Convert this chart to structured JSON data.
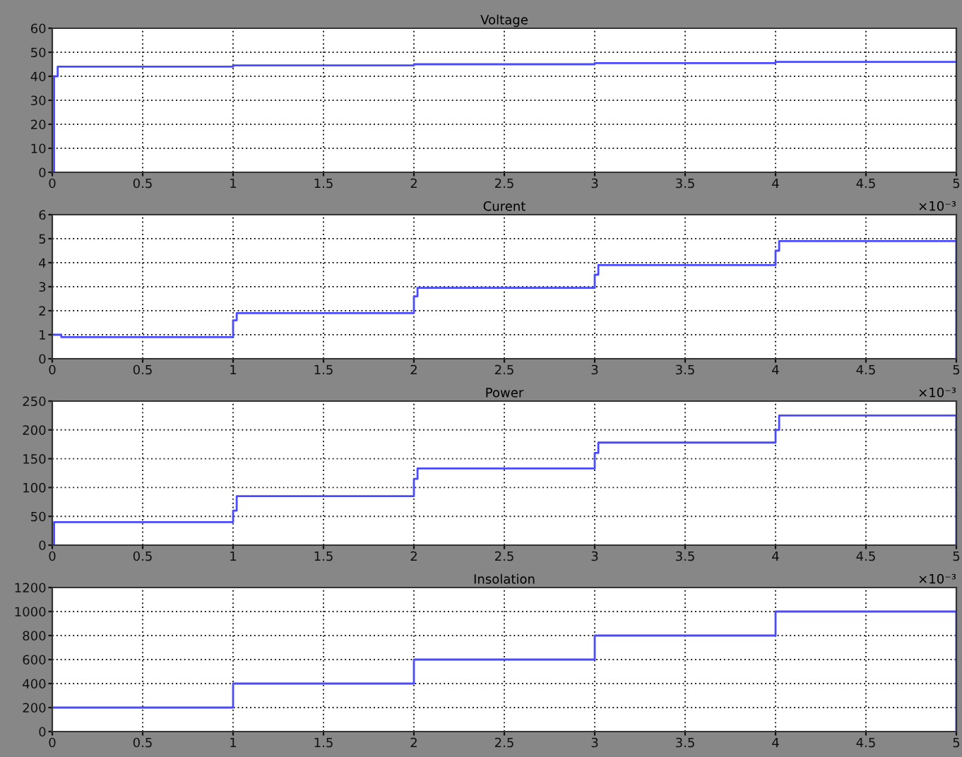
{
  "chart_data": [
    {
      "type": "step",
      "title": "Voltage",
      "x": [
        0,
        0.01,
        0.03,
        1,
        2,
        3,
        4,
        5
      ],
      "series": [
        {
          "color": "#4a4aff",
          "values": [
            0,
            40,
            44,
            44.5,
            45,
            45.5,
            46,
            46
          ]
        }
      ],
      "xlim": [
        0,
        5
      ],
      "xticks": [
        0,
        0.5,
        1,
        1.5,
        2,
        2.5,
        3,
        3.5,
        4,
        4.5,
        5
      ],
      "ylim": [
        0,
        60
      ],
      "yticks": [
        0,
        10,
        20,
        30,
        40,
        50,
        60
      ],
      "grid": true,
      "legend": false
    },
    {
      "type": "step",
      "title": "Curent",
      "x": [
        0,
        0.05,
        1,
        1.02,
        2,
        2.02,
        3,
        3.02,
        4,
        4.02,
        5
      ],
      "series": [
        {
          "color": "#4a4aff",
          "values": [
            1,
            0.9,
            1.6,
            1.9,
            2.6,
            2.95,
            3.5,
            3.9,
            4.5,
            4.9,
            0
          ]
        }
      ],
      "xlim": [
        0,
        5
      ],
      "xticks": [
        0,
        0.5,
        1,
        1.5,
        2,
        2.5,
        3,
        3.5,
        4,
        4.5,
        5
      ],
      "ylim": [
        0,
        6
      ],
      "yticks": [
        0,
        1,
        2,
        3,
        4,
        5,
        6
      ],
      "grid": true,
      "legend": false,
      "annotations": [
        "×10⁻³"
      ]
    },
    {
      "type": "step",
      "title": "Power",
      "x": [
        0,
        0.01,
        1,
        1.02,
        2,
        2.02,
        3,
        3.02,
        4,
        4.02,
        5
      ],
      "series": [
        {
          "color": "#4a4aff",
          "values": [
            0,
            40,
            60,
            85,
            115,
            133,
            160,
            178,
            200,
            225,
            0
          ]
        }
      ],
      "xlim": [
        0,
        5
      ],
      "xticks": [
        0,
        0.5,
        1,
        1.5,
        2,
        2.5,
        3,
        3.5,
        4,
        4.5,
        5
      ],
      "ylim": [
        0,
        250
      ],
      "yticks": [
        0,
        50,
        100,
        150,
        200,
        250
      ],
      "grid": true,
      "legend": false,
      "annotations": [
        "×10⁻³"
      ]
    },
    {
      "type": "step",
      "title": "Insolation",
      "x": [
        0,
        1,
        2,
        3,
        4,
        5
      ],
      "series": [
        {
          "color": "#4a4aff",
          "values": [
            200,
            400,
            600,
            800,
            1000,
            0
          ]
        }
      ],
      "xlim": [
        0,
        5
      ],
      "xticks": [
        0,
        0.5,
        1,
        1.5,
        2,
        2.5,
        3,
        3.5,
        4,
        4.5,
        5
      ],
      "ylim": [
        0,
        1200
      ],
      "yticks": [
        0,
        200,
        400,
        600,
        800,
        1000,
        1200
      ],
      "grid": true,
      "legend": false,
      "annotations": [
        "×10⁻³"
      ]
    }
  ]
}
